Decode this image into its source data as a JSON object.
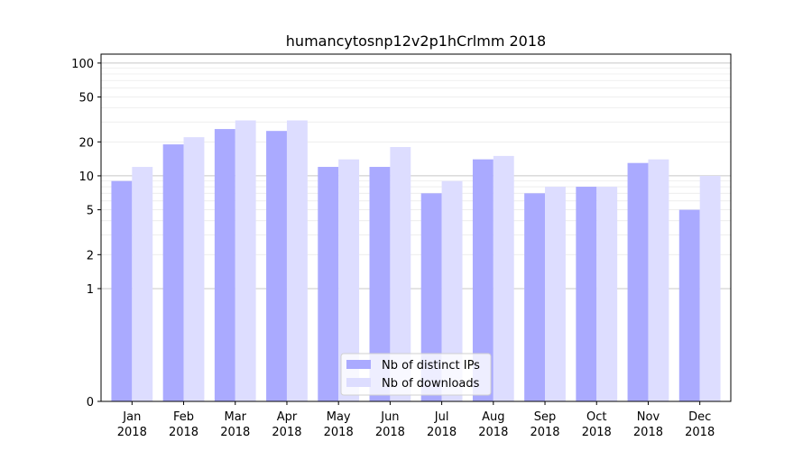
{
  "chart_data": {
    "type": "bar",
    "title": "humancytosnp12v2p1hCrlmm 2018",
    "xlabel": "",
    "ylabel": "",
    "yscale": "symlog",
    "ylim": [
      0,
      120
    ],
    "y_ticks": [
      0,
      1,
      2,
      5,
      10,
      20,
      50,
      100
    ],
    "y_tick_labels": [
      "0",
      "1",
      "2",
      "5",
      "10",
      "20",
      "50",
      "100"
    ],
    "categories": [
      "Jan\n2018",
      "Feb\n2018",
      "Mar\n2018",
      "Apr\n2018",
      "May\n2018",
      "Jun\n2018",
      "Jul\n2018",
      "Aug\n2018",
      "Sep\n2018",
      "Oct\n2018",
      "Nov\n2018",
      "Dec\n2018"
    ],
    "series": [
      {
        "name": "Nb of distinct IPs",
        "color": "#aaaaff",
        "values": [
          9,
          19,
          26,
          25,
          12,
          12,
          7,
          14,
          7,
          8,
          13,
          5
        ]
      },
      {
        "name": "Nb of downloads",
        "color": "#ddddff",
        "values": [
          12,
          22,
          31,
          31,
          14,
          18,
          9,
          15,
          8,
          8,
          14,
          10
        ]
      }
    ],
    "grid": true,
    "legend_position": "bottom-center"
  }
}
